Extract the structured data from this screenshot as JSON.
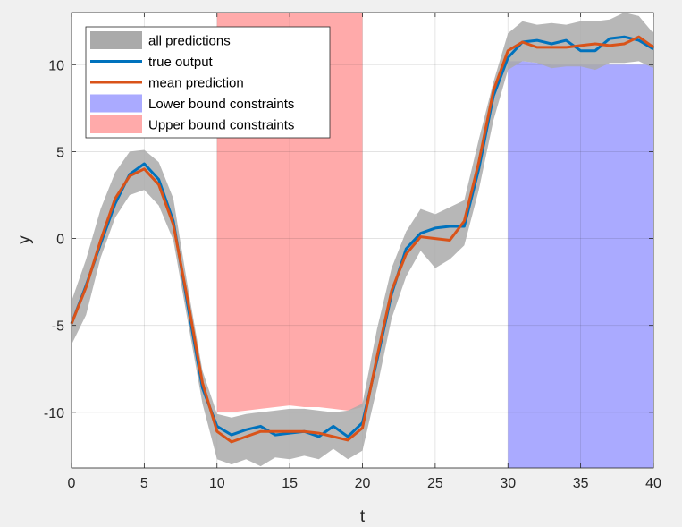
{
  "chart_data": {
    "type": "line",
    "title": "",
    "xlabel": "t",
    "ylabel": "y",
    "xlim": [
      0,
      40
    ],
    "ylim": [
      -13.2,
      13
    ],
    "xticks": [
      0,
      5,
      10,
      15,
      20,
      25,
      30,
      35,
      40
    ],
    "yticks": [
      -10,
      -5,
      0,
      5,
      10
    ],
    "grid": true,
    "legend_position": "top-left",
    "x": [
      0,
      1,
      2,
      3,
      4,
      5,
      6,
      7,
      8,
      9,
      10,
      11,
      12,
      13,
      14,
      15,
      16,
      17,
      18,
      19,
      20,
      21,
      22,
      23,
      24,
      25,
      26,
      27,
      28,
      29,
      30,
      31,
      32,
      33,
      34,
      35,
      36,
      37,
      38,
      39,
      40
    ],
    "band": {
      "name": "all predictions",
      "upper": [
        -3.6,
        -1.2,
        1.7,
        3.8,
        5.0,
        5.1,
        4.4,
        2.3,
        -2.8,
        -7.6,
        -10.1,
        -10.3,
        -10.1,
        -10.0,
        -9.9,
        -9.8,
        -9.8,
        -9.9,
        -10.0,
        -9.9,
        -9.5,
        -5.2,
        -1.7,
        0.4,
        1.7,
        1.4,
        1.8,
        2.2,
        5.7,
        9.0,
        11.8,
        12.5,
        12.3,
        12.4,
        12.3,
        12.5,
        12.5,
        12.6,
        13.0,
        12.8,
        11.8
      ],
      "lower": [
        -6.1,
        -4.4,
        -1.1,
        1.2,
        2.5,
        2.8,
        1.9,
        -0.1,
        -4.8,
        -9.5,
        -12.7,
        -13.0,
        -12.7,
        -13.1,
        -12.6,
        -12.7,
        -12.5,
        -12.7,
        -12.1,
        -12.7,
        -12.2,
        -8.6,
        -4.6,
        -2.2,
        -0.7,
        -1.7,
        -1.2,
        -0.4,
        2.8,
        6.8,
        9.7,
        10.2,
        10.1,
        9.8,
        9.9,
        9.9,
        9.7,
        10.1,
        10.1,
        10.2,
        9.8
      ]
    },
    "series": [
      {
        "name": "true output",
        "color": "#0072bd",
        "values": [
          -4.9,
          -2.7,
          -0.3,
          2.0,
          3.7,
          4.3,
          3.4,
          1.0,
          -3.9,
          -8.6,
          -10.8,
          -11.3,
          -11.0,
          -10.8,
          -11.3,
          -11.2,
          -11.1,
          -11.4,
          -10.8,
          -11.4,
          -10.6,
          -7.0,
          -3.2,
          -0.6,
          0.3,
          0.6,
          0.7,
          0.7,
          4.0,
          8.2,
          10.4,
          11.3,
          11.4,
          11.2,
          11.4,
          10.8,
          10.8,
          11.5,
          11.6,
          11.4,
          10.9
        ]
      },
      {
        "name": "mean prediction",
        "color": "#d95319",
        "values": [
          -4.9,
          -2.8,
          -0.1,
          2.3,
          3.6,
          4.0,
          3.1,
          0.8,
          -3.6,
          -8.3,
          -11.1,
          -11.7,
          -11.4,
          -11.1,
          -11.1,
          -11.1,
          -11.1,
          -11.2,
          -11.4,
          -11.6,
          -10.9,
          -6.8,
          -3.0,
          -0.9,
          0.1,
          0.0,
          -0.1,
          1.0,
          4.4,
          8.5,
          10.8,
          11.3,
          11.0,
          11.0,
          11.0,
          11.1,
          11.2,
          11.1,
          11.2,
          11.6,
          11.0
        ]
      }
    ],
    "regions": [
      {
        "name": "Lower bound constraints",
        "color": "#aaaaff",
        "x_range": [
          30,
          40
        ],
        "y_from": "bottom",
        "bound": [
          10.2,
          10.2,
          10.1,
          10.0,
          10.0,
          10.0,
          10.0,
          10.0,
          10.0,
          10.0,
          10.0
        ]
      },
      {
        "name": "Upper bound constraints",
        "color": "#ffaaaa",
        "x_range": [
          10,
          20
        ],
        "y_from": "top",
        "bound": [
          -10.0,
          -10.0,
          -9.9,
          -9.8,
          -9.7,
          -9.6,
          -9.7,
          -9.7,
          -9.8,
          -9.9,
          -9.7
        ]
      }
    ],
    "band_color": "#aaaaaa",
    "tick_labels_x": [
      "0",
      "5",
      "10",
      "15",
      "20",
      "25",
      "30",
      "35",
      "40"
    ],
    "tick_labels_y": [
      "-10",
      "-5",
      "0",
      "5",
      "10"
    ]
  }
}
